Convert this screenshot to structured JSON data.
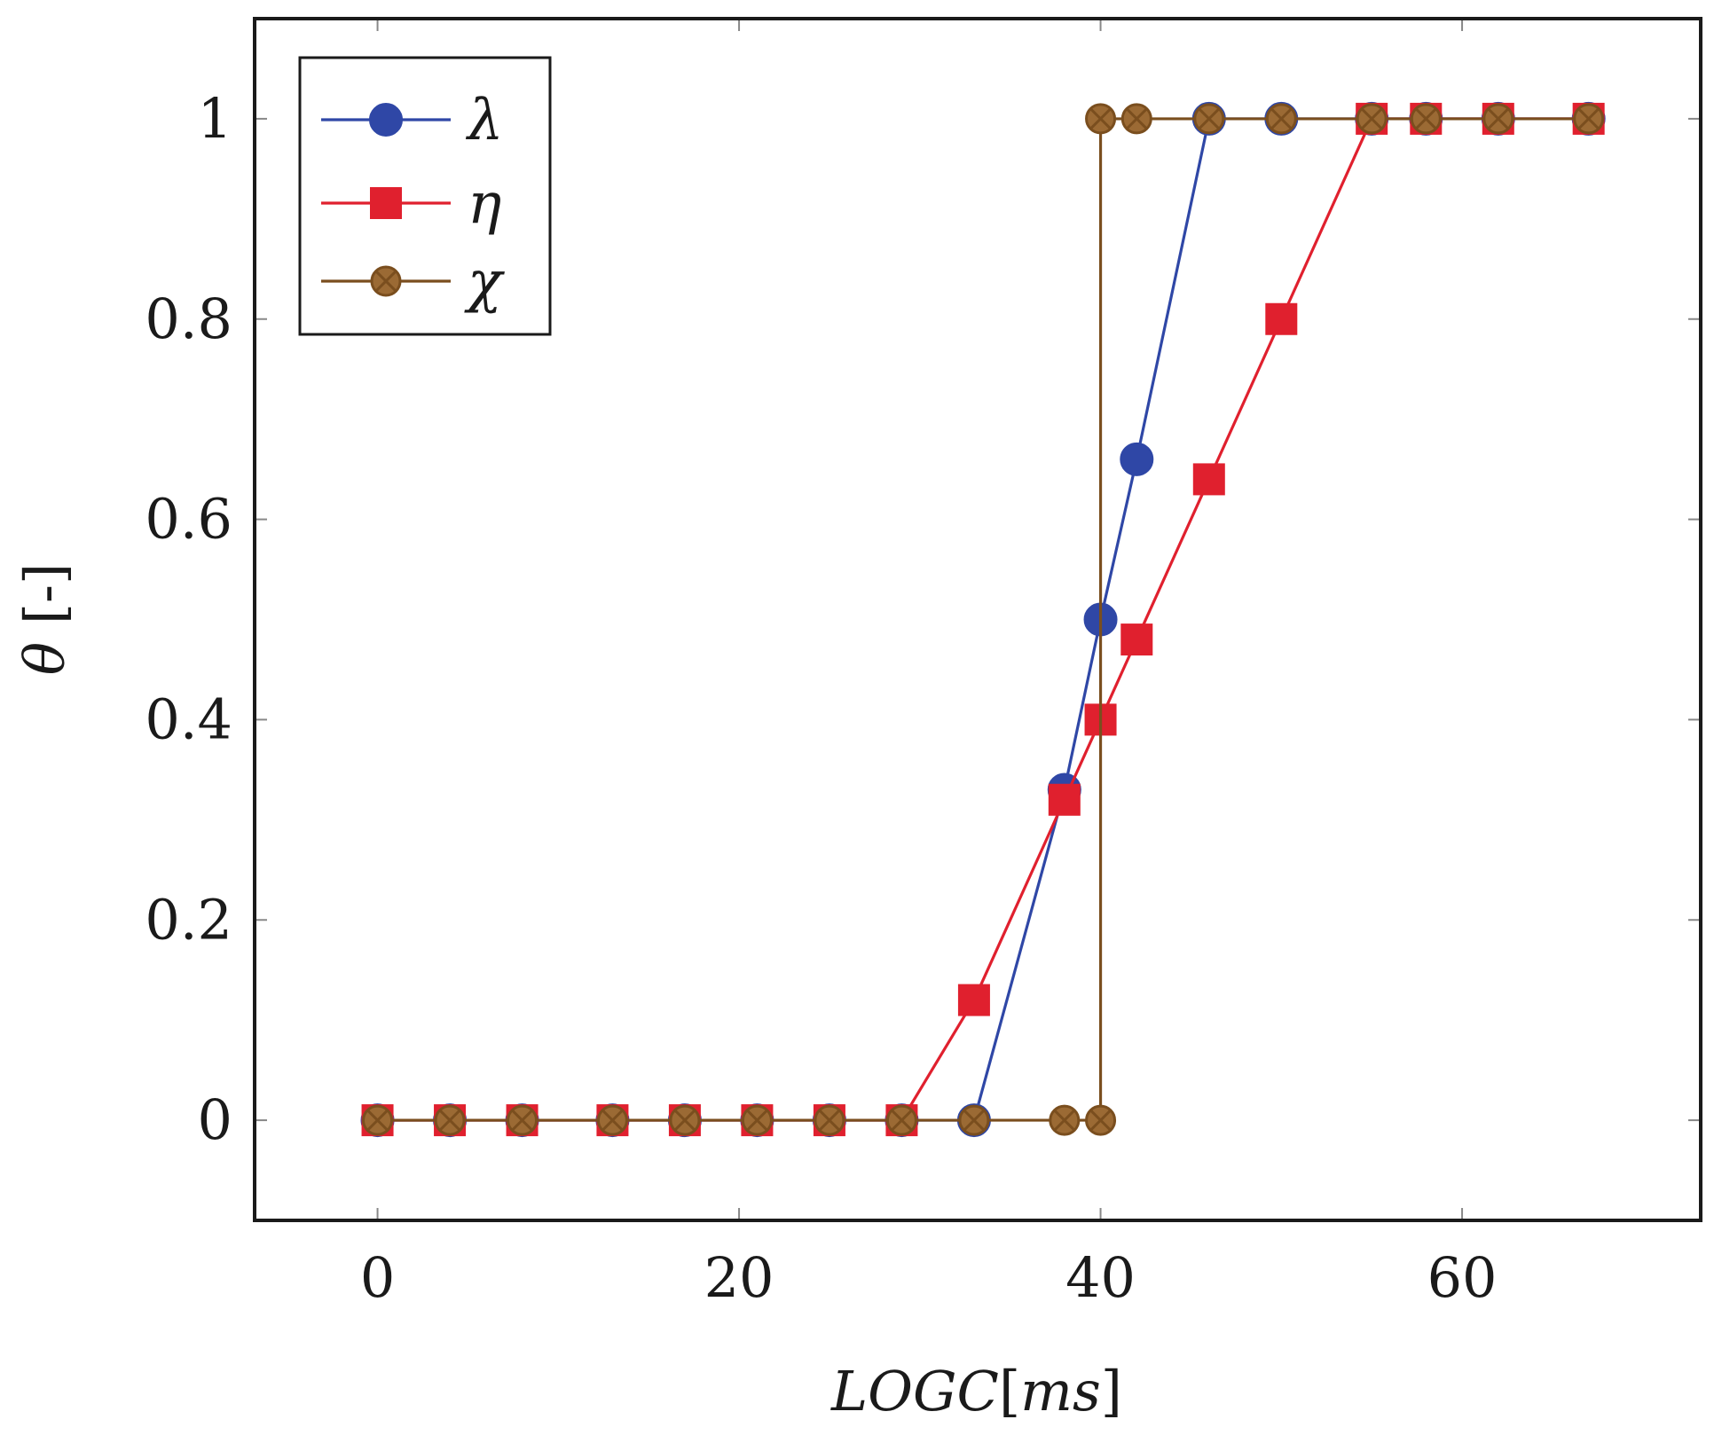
{
  "chart_data": {
    "type": "line",
    "title": "",
    "xlabel_parts": [
      "LOGC",
      "[",
      "ms",
      "]"
    ],
    "ylabel_parts": [
      "θ",
      " [-]"
    ],
    "xlim": [
      -6.8,
      73.2
    ],
    "ylim": [
      -0.1,
      1.1
    ],
    "x_ticks": [
      0,
      20,
      40,
      60
    ],
    "y_ticks": [
      0,
      0.2,
      0.4,
      0.6,
      0.8,
      1
    ],
    "x_tick_labels": [
      "0",
      "20",
      "40",
      "60"
    ],
    "y_tick_labels": [
      "0",
      "0.2",
      "0.4",
      "0.6",
      "0.8",
      "1"
    ],
    "grid": false,
    "legend_position": "top-left",
    "series": [
      {
        "name": "λ",
        "color": "#2f47a6",
        "marker": "circle",
        "points": [
          [
            0,
            0
          ],
          [
            4,
            0
          ],
          [
            8,
            0
          ],
          [
            13,
            0
          ],
          [
            17,
            0
          ],
          [
            21,
            0
          ],
          [
            25,
            0
          ],
          [
            29,
            0
          ],
          [
            33,
            0
          ],
          [
            38,
            0.33
          ],
          [
            40,
            0.5
          ],
          [
            42,
            0.66
          ],
          [
            46,
            1
          ],
          [
            50,
            1
          ],
          [
            55,
            1
          ],
          [
            58,
            1
          ],
          [
            62,
            1
          ],
          [
            67,
            1
          ]
        ]
      },
      {
        "name": "η",
        "color": "#e0202e",
        "marker": "square",
        "points": [
          [
            0,
            0
          ],
          [
            4,
            0
          ],
          [
            8,
            0
          ],
          [
            13,
            0
          ],
          [
            17,
            0
          ],
          [
            21,
            0
          ],
          [
            25,
            0
          ],
          [
            29,
            0
          ],
          [
            33,
            0.12
          ],
          [
            38,
            0.32
          ],
          [
            40,
            0.4
          ],
          [
            42,
            0.48
          ],
          [
            46,
            0.64
          ],
          [
            50,
            0.8
          ],
          [
            55,
            1
          ],
          [
            58,
            1
          ],
          [
            62,
            1
          ],
          [
            67,
            1
          ]
        ]
      },
      {
        "name": "χ",
        "color": "#7a4e1e",
        "fill": "#9b6a34",
        "marker": "circle-x",
        "points": [
          [
            0,
            0
          ],
          [
            4,
            0
          ],
          [
            8,
            0
          ],
          [
            13,
            0
          ],
          [
            17,
            0
          ],
          [
            21,
            0
          ],
          [
            25,
            0
          ],
          [
            29,
            0
          ],
          [
            33,
            0
          ],
          [
            38,
            0
          ],
          [
            40,
            0
          ],
          [
            40,
            1
          ],
          [
            42,
            1
          ],
          [
            46,
            1
          ],
          [
            50,
            1
          ],
          [
            55,
            1
          ],
          [
            58,
            1
          ],
          [
            62,
            1
          ],
          [
            67,
            1
          ]
        ]
      }
    ]
  }
}
